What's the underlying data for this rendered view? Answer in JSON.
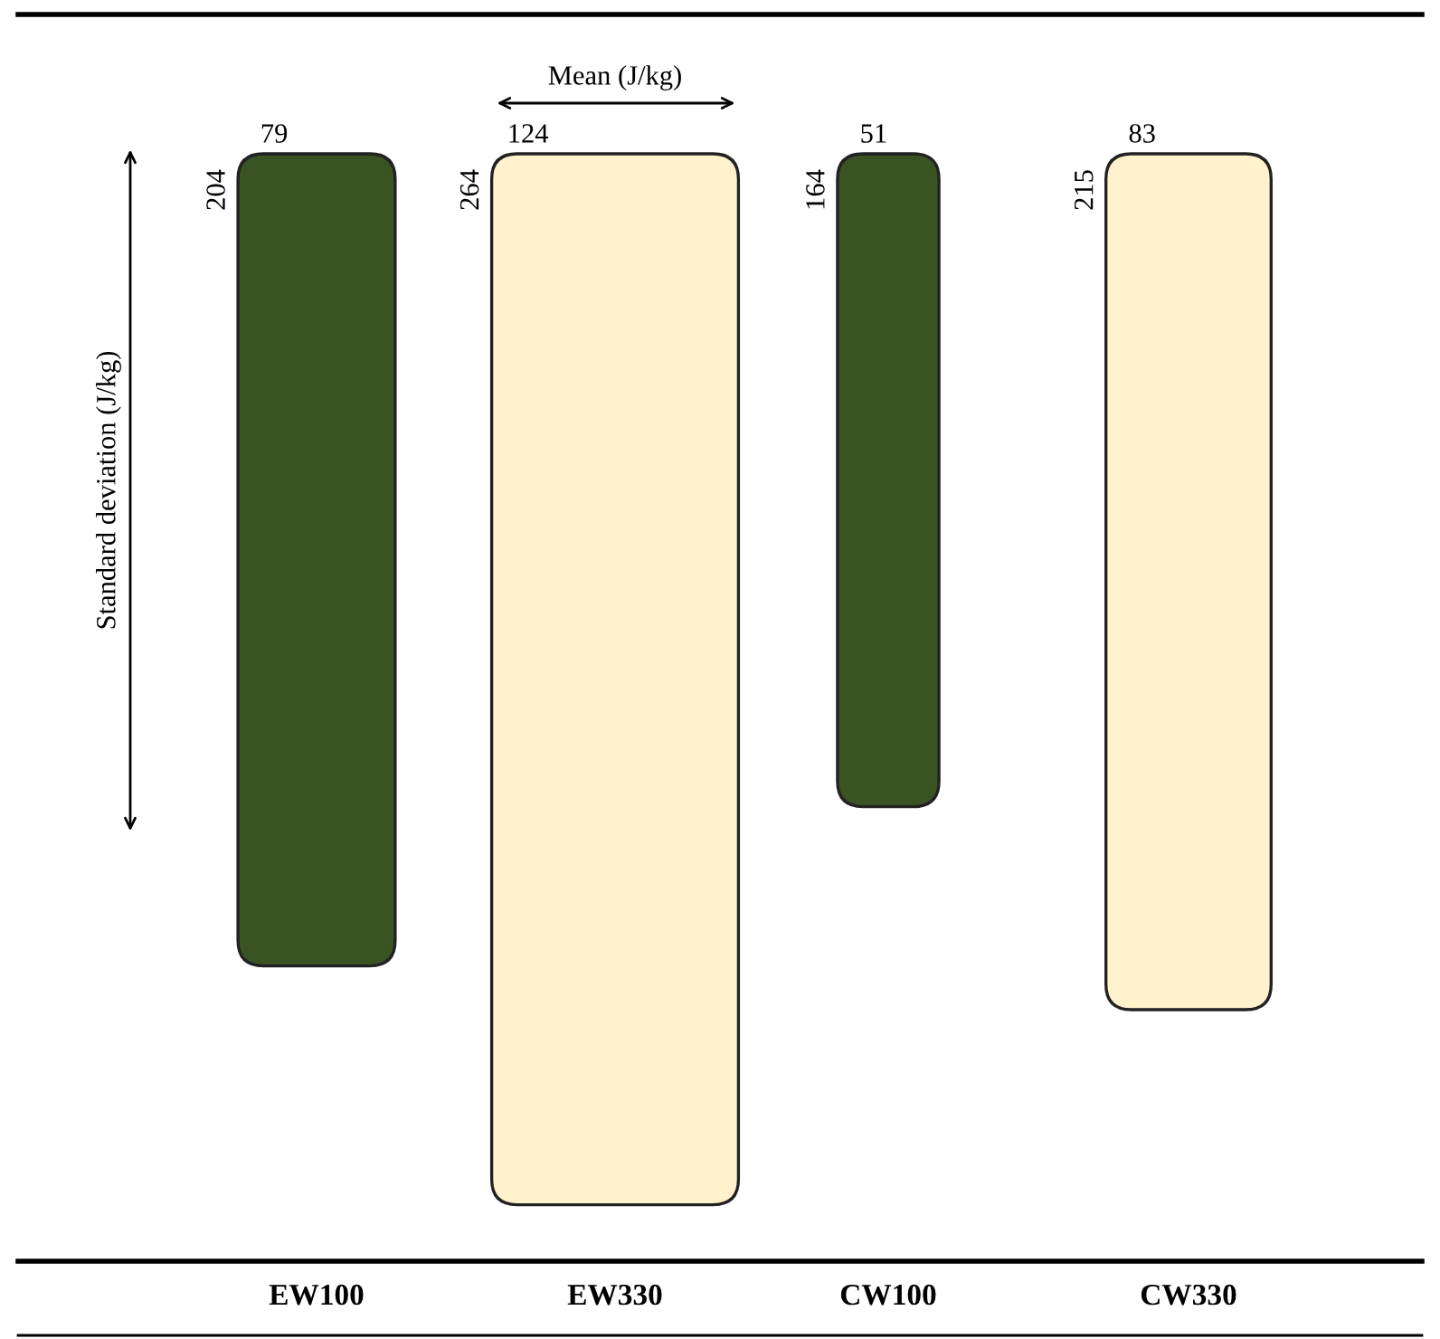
{
  "chart_data": {
    "type": "other",
    "xlabel": "Mean (J/kg)",
    "ylabel": "Standard deviation (J/kg)",
    "categories": [
      "EW100",
      "EW330",
      "CW100",
      "CW330"
    ],
    "series": [
      {
        "values": [
          79,
          124,
          51,
          83
        ]
      },
      {
        "values": [
          204,
          264,
          164,
          215
        ]
      }
    ],
    "colors": [
      "#3a5323",
      "#fff2cc",
      "#3a5323",
      "#fff2cc"
    ],
    "data_labels": true
  }
}
